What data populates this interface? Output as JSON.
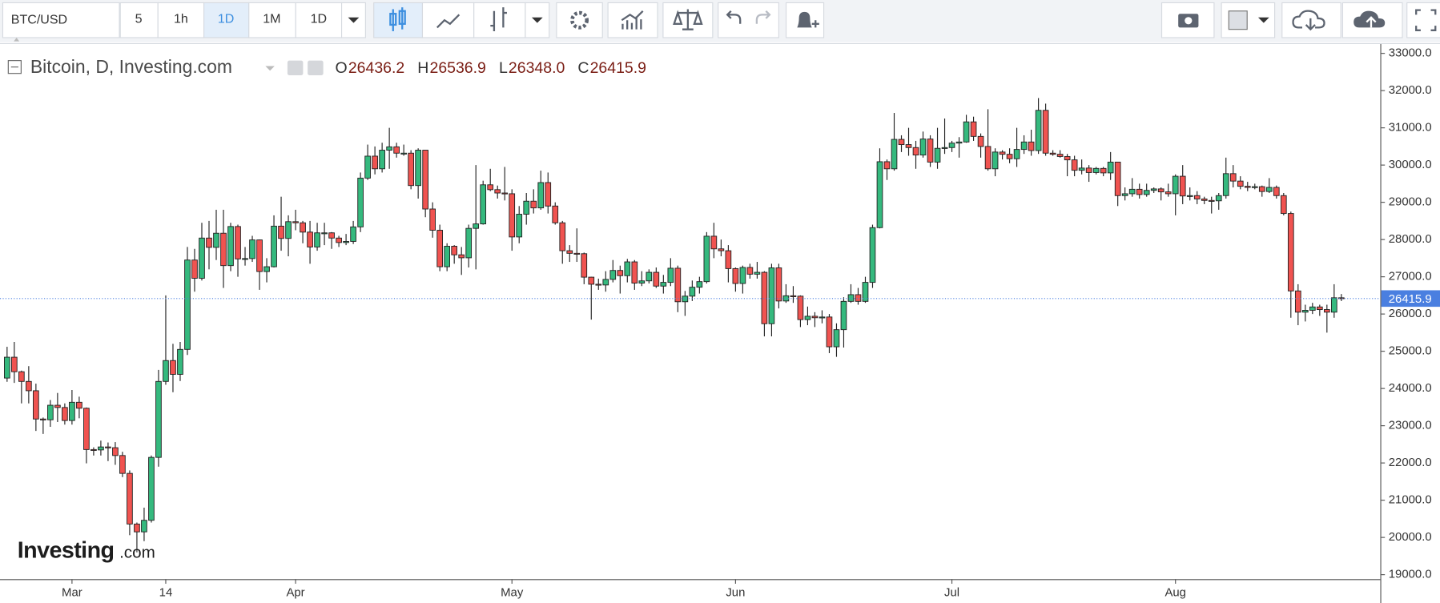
{
  "toolbar": {
    "symbol": "BTC/USD",
    "intervals": [
      "5",
      "1h",
      "1D",
      "1M",
      "1D"
    ]
  },
  "watermark": {
    "brand": "Investing",
    "suffix": ".com"
  },
  "chart_data": {
    "type": "candlestick",
    "title": "Bitcoin, D, Investing.com",
    "ohlc_readout": [
      {
        "label": "O",
        "value": "26436.2"
      },
      {
        "label": "H",
        "value": "26536.9"
      },
      {
        "label": "L",
        "value": "26348.0"
      },
      {
        "label": "C",
        "value": "26415.9"
      }
    ],
    "up_color": "#35b97e",
    "down_color": "#f05350",
    "outline_color": "#222222",
    "price_line_color": "#4a7fe0",
    "grid": false,
    "xlim": [
      -0.6,
      190.4
    ],
    "xticks": [
      {
        "value": 9,
        "label": "Mar"
      },
      {
        "value": 22,
        "label": "14"
      },
      {
        "value": 40,
        "label": "Apr"
      },
      {
        "value": 70,
        "label": "May"
      },
      {
        "value": 101,
        "label": "Jun"
      },
      {
        "value": 131,
        "label": "Jul"
      },
      {
        "value": 162,
        "label": "Aug"
      }
    ],
    "ylim": [
      18880,
      33250
    ],
    "yticks": [
      {
        "value": 19000,
        "label": "19000.0"
      },
      {
        "value": 20000,
        "label": "20000.0"
      },
      {
        "value": 21000,
        "label": "21000.0"
      },
      {
        "value": 22000,
        "label": "22000.0"
      },
      {
        "value": 23000,
        "label": "23000.0"
      },
      {
        "value": 24000,
        "label": "24000.0"
      },
      {
        "value": 25000,
        "label": "25000.0"
      },
      {
        "value": 26000,
        "label": "26000.0"
      },
      {
        "value": 27000,
        "label": "27000.0"
      },
      {
        "value": 28000,
        "label": "28000.0"
      },
      {
        "value": 29000,
        "label": "29000.0"
      },
      {
        "value": 30000,
        "label": "30000.0"
      },
      {
        "value": 31000,
        "label": "31000.0"
      },
      {
        "value": 32000,
        "label": "32000.0"
      },
      {
        "value": 33000,
        "label": "33000.0"
      }
    ],
    "open": [
      24280,
      24840,
      24450,
      24190,
      23940,
      23180,
      23160,
      23550,
      23490,
      23140,
      23630,
      23470,
      22360,
      22350,
      22430,
      22410,
      22200,
      21720,
      20360,
      20150,
      20460,
      22150,
      24190,
      24750,
      24380,
      25050,
      27450,
      26960,
      28040,
      27790,
      28170,
      27300,
      28350,
      27480,
      27490,
      27990,
      27140,
      27270,
      28360,
      28030,
      28480,
      28450,
      28200,
      27800,
      28180,
      28180,
      28040,
      27920,
      27950,
      28340,
      29650,
      30240,
      29900,
      30400,
      30490,
      30320,
      30320,
      29450,
      30400,
      28820,
      28250,
      27270,
      27820,
      27590,
      27510,
      28300,
      28420,
      29470,
      29340,
      29250,
      29230,
      28070,
      28680,
      29030,
      28850,
      29530,
      28900,
      28450,
      27700,
      27630,
      27620,
      26990,
      26800,
      26780,
      26930,
      27170,
      27030,
      27400,
      26830,
      26890,
      27120,
      26750,
      26850,
      27230,
      26330,
      26480,
      26720,
      26870,
      28090,
      27750,
      27700,
      27220,
      26820,
      27250,
      27070,
      27120,
      25740,
      27240,
      26350,
      26490,
      26480,
      25850,
      25940,
      25900,
      25920,
      25120,
      25580,
      26340,
      26520,
      26340,
      26850,
      28320,
      30090,
      29900,
      30690,
      30550,
      30470,
      30270,
      30700,
      30080,
      30450,
      30470,
      30590,
      30620,
      31160,
      30770,
      30500,
      29900,
      30350,
      30290,
      30170,
      30420,
      30620,
      30390,
      31470,
      30320,
      30290,
      30230,
      30140,
      29860,
      29920,
      29800,
      29910,
      29790,
      30080,
      29180,
      29230,
      29350,
      29210,
      29320,
      29360,
      29280,
      29230,
      29700,
      29170,
      29180,
      29090,
      29050,
      29040,
      29180,
      29770,
      29570,
      29430,
      29400,
      29420,
      29290,
      29400,
      29180,
      28700,
      26620,
      26050,
      26100,
      26190,
      26120,
      26050,
      26436.2
    ],
    "high": [
      25120,
      25250,
      24480,
      24600,
      24130,
      23220,
      23690,
      23880,
      23600,
      23960,
      23780,
      23490,
      22420,
      22600,
      22550,
      22560,
      22300,
      21800,
      20400,
      20800,
      22200,
      24500,
      26500,
      25200,
      25250,
      27800,
      27750,
      28450,
      28500,
      28800,
      28800,
      28450,
      28400,
      27800,
      28100,
      28000,
      27500,
      28650,
      29150,
      28650,
      28800,
      28500,
      28500,
      28450,
      28450,
      28200,
      28100,
      28150,
      28500,
      29800,
      30550,
      30500,
      30600,
      31000,
      30600,
      30550,
      30400,
      30450,
      30400,
      29000,
      28400,
      27900,
      27850,
      27800,
      28400,
      30000,
      29580,
      29900,
      29450,
      29950,
      29350,
      28900,
      29250,
      29350,
      29850,
      29800,
      29000,
      28500,
      27850,
      28300,
      27650,
      27000,
      26950,
      27150,
      27450,
      27300,
      27480,
      27450,
      27150,
      27200,
      27250,
      27050,
      27500,
      27300,
      26620,
      26900,
      27000,
      28200,
      28450,
      28000,
      27850,
      27250,
      27300,
      27350,
      27400,
      27150,
      27350,
      27350,
      26800,
      26750,
      26500,
      26200,
      26050,
      26100,
      26000,
      25750,
      26450,
      26800,
      26700,
      27000,
      28400,
      30450,
      30150,
      31400,
      30800,
      31000,
      30650,
      30900,
      30800,
      31000,
      31250,
      30650,
      30750,
      31350,
      31300,
      30850,
      31500,
      30450,
      30400,
      30450,
      31000,
      30800,
      30950,
      31800,
      31650,
      30400,
      30400,
      30300,
      30250,
      30150,
      30000,
      29950,
      29950,
      30350,
      30080,
      29400,
      29650,
      29500,
      29500,
      29400,
      29400,
      29500,
      29750,
      30000,
      29400,
      29300,
      29150,
      29150,
      29250,
      30200,
      30000,
      29700,
      29550,
      29500,
      29450,
      29650,
      29450,
      29250,
      28750,
      26800,
      26250,
      26300,
      26250,
      26250,
      26800,
      26536.9
    ],
    "low": [
      24180,
      24150,
      23600,
      23600,
      22860,
      22780,
      22970,
      23100,
      23030,
      23030,
      23200,
      21990,
      22200,
      22200,
      22050,
      21950,
      21620,
      20060,
      19600,
      19900,
      20400,
      21900,
      24100,
      23900,
      24200,
      24900,
      26600,
      26900,
      27200,
      27450,
      26700,
      27150,
      27000,
      27300,
      27400,
      26650,
      26850,
      27250,
      27700,
      27550,
      28250,
      27900,
      27350,
      27700,
      27850,
      27750,
      27800,
      27850,
      27880,
      28200,
      29600,
      29750,
      29800,
      29900,
      30200,
      30250,
      29350,
      29100,
      28600,
      28050,
      27150,
      27150,
      27350,
      27050,
      27250,
      27200,
      28400,
      29300,
      29100,
      29050,
      27700,
      27900,
      28400,
      28700,
      28800,
      28700,
      28400,
      27350,
      27400,
      27400,
      26800,
      25850,
      26650,
      26600,
      26850,
      26550,
      26850,
      26650,
      26750,
      26820,
      26700,
      26550,
      26750,
      26050,
      25950,
      26350,
      26550,
      26820,
      27500,
      27550,
      26850,
      26600,
      26550,
      26950,
      26950,
      25400,
      25400,
      26150,
      26300,
      26300,
      25650,
      25700,
      25650,
      25750,
      24950,
      24850,
      25100,
      26300,
      26250,
      26300,
      26700,
      28300,
      29600,
      29850,
      30350,
      30250,
      29900,
      30200,
      29950,
      29900,
      30300,
      30350,
      30200,
      30600,
      30650,
      30200,
      29850,
      29700,
      30150,
      30050,
      29950,
      30300,
      30250,
      30300,
      30250,
      30250,
      30200,
      29700,
      29700,
      29750,
      29550,
      29750,
      29700,
      29600,
      28900,
      29050,
      29150,
      29100,
      29150,
      29250,
      29050,
      29150,
      28650,
      28950,
      29050,
      28950,
      28950,
      28700,
      28800,
      29100,
      29400,
      29350,
      29300,
      29350,
      29150,
      29250,
      29100,
      28650,
      25900,
      25700,
      25800,
      26000,
      25950,
      25500,
      25900,
      26348
    ],
    "close": [
      24840,
      24450,
      24190,
      23940,
      23180,
      23160,
      23550,
      23490,
      23140,
      23630,
      23470,
      22360,
      22350,
      22430,
      22410,
      22200,
      21720,
      20360,
      20150,
      20460,
      22150,
      24190,
      24750,
      24380,
      25050,
      27450,
      26960,
      28040,
      27790,
      28170,
      27300,
      28350,
      27480,
      27490,
      27990,
      27140,
      27270,
      28360,
      28030,
      28480,
      28450,
      28200,
      27800,
      28180,
      28180,
      28040,
      27920,
      27950,
      28340,
      29650,
      30240,
      29900,
      30400,
      30490,
      30320,
      30320,
      29450,
      30400,
      28820,
      28250,
      27270,
      27820,
      27590,
      27510,
      28300,
      28420,
      29470,
      29340,
      29250,
      29230,
      28070,
      28680,
      29030,
      28850,
      29530,
      28900,
      28450,
      27700,
      27630,
      27620,
      26990,
      26800,
      26780,
      26930,
      27170,
      27030,
      27400,
      26830,
      26890,
      27120,
      26750,
      26850,
      27230,
      26330,
      26480,
      26720,
      26870,
      28090,
      27750,
      27700,
      27220,
      26820,
      27250,
      27070,
      27120,
      25740,
      27240,
      26350,
      26490,
      26480,
      25850,
      25940,
      25900,
      25920,
      25120,
      25580,
      26340,
      26520,
      26340,
      26850,
      28320,
      30090,
      29900,
      30690,
      30550,
      30470,
      30270,
      30700,
      30080,
      30450,
      30470,
      30590,
      30620,
      31160,
      30770,
      30500,
      29900,
      30350,
      30290,
      30170,
      30420,
      30620,
      30390,
      31470,
      30320,
      30290,
      30230,
      30140,
      29860,
      29920,
      29800,
      29910,
      29790,
      30080,
      29180,
      29230,
      29350,
      29210,
      29320,
      29360,
      29280,
      29230,
      29700,
      29170,
      29180,
      29090,
      29050,
      29040,
      29180,
      29770,
      29570,
      29430,
      29400,
      29420,
      29290,
      29400,
      29180,
      28700,
      26620,
      26050,
      26100,
      26190,
      26120,
      26050,
      26436.2,
      26415.9
    ]
  }
}
